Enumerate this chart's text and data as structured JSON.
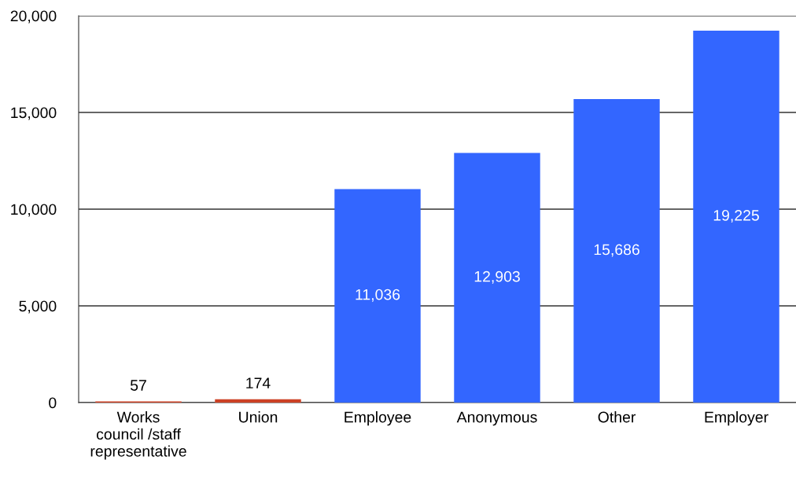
{
  "chart_data": {
    "type": "bar",
    "categories": [
      "Works\ncouncil /staff\nrepresentative",
      "Union",
      "Employee",
      "Anonymous",
      "Other",
      "Employer"
    ],
    "values": [
      57,
      174,
      11036,
      12903,
      15686,
      19225
    ],
    "colors": [
      "#cc4125",
      "#cc4125",
      "#3366ff",
      "#3366ff",
      "#3366ff",
      "#3366ff"
    ],
    "value_labels": [
      "57",
      "174",
      "11,036",
      "12,903",
      "15,686",
      "19,225"
    ],
    "ylim": [
      0,
      20000
    ],
    "yticks": [
      {
        "value": 0,
        "label": "0"
      },
      {
        "value": 5000,
        "label": "5,000"
      },
      {
        "value": 10000,
        "label": "10,000"
      },
      {
        "value": 15000,
        "label": "15,000"
      },
      {
        "value": 20000,
        "label": "20,000"
      }
    ],
    "grid": "y",
    "legend": false
  }
}
